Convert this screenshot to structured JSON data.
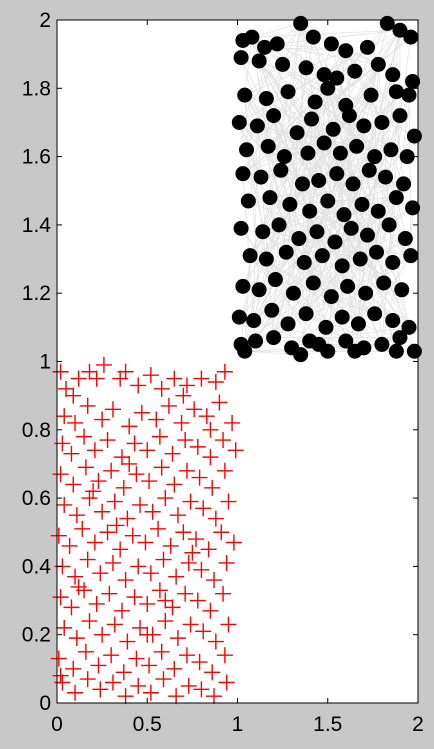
{
  "chart_data": {
    "type": "scatter",
    "title": "",
    "xlabel": "",
    "ylabel": "",
    "xlim": [
      0,
      2
    ],
    "ylim": [
      0,
      2
    ],
    "grid": false,
    "x_ticks": [
      "0",
      "0.5",
      "1",
      "1.5",
      "2"
    ],
    "y_ticks": [
      "0",
      "0.2",
      "0.4",
      "0.6",
      "0.8",
      "1",
      "1.2",
      "1.4",
      "1.6",
      "1.8",
      "2"
    ],
    "series": [
      {
        "marker": "plus",
        "color": "#ff0000",
        "region": {
          "x": [
            0,
            1
          ],
          "y": [
            0,
            1
          ]
        },
        "points": [
          [
            0.02,
            0.97
          ],
          [
            0.05,
            0.92
          ],
          [
            0.09,
            0.9
          ],
          [
            0.12,
            0.95
          ],
          [
            0.18,
            0.97
          ],
          [
            0.22,
            0.95
          ],
          [
            0.26,
            0.99
          ],
          [
            0.35,
            0.95
          ],
          [
            0.38,
            0.97
          ],
          [
            0.45,
            0.93
          ],
          [
            0.52,
            0.96
          ],
          [
            0.58,
            0.92
          ],
          [
            0.65,
            0.95
          ],
          [
            0.72,
            0.93
          ],
          [
            0.8,
            0.95
          ],
          [
            0.88,
            0.94
          ],
          [
            0.93,
            0.97
          ],
          [
            0.04,
            0.84
          ],
          [
            0.1,
            0.82
          ],
          [
            0.17,
            0.87
          ],
          [
            0.25,
            0.83
          ],
          [
            0.31,
            0.86
          ],
          [
            0.4,
            0.81
          ],
          [
            0.47,
            0.85
          ],
          [
            0.55,
            0.83
          ],
          [
            0.62,
            0.87
          ],
          [
            0.69,
            0.82
          ],
          [
            0.76,
            0.86
          ],
          [
            0.83,
            0.84
          ],
          [
            0.9,
            0.88
          ],
          [
            0.97,
            0.82
          ],
          [
            0.03,
            0.76
          ],
          [
            0.08,
            0.73
          ],
          [
            0.15,
            0.78
          ],
          [
            0.21,
            0.74
          ],
          [
            0.28,
            0.77
          ],
          [
            0.36,
            0.72
          ],
          [
            0.43,
            0.76
          ],
          [
            0.5,
            0.74
          ],
          [
            0.57,
            0.78
          ],
          [
            0.64,
            0.73
          ],
          [
            0.71,
            0.77
          ],
          [
            0.78,
            0.75
          ],
          [
            0.85,
            0.72
          ],
          [
            0.92,
            0.77
          ],
          [
            0.99,
            0.74
          ],
          [
            0.02,
            0.67
          ],
          [
            0.09,
            0.64
          ],
          [
            0.16,
            0.69
          ],
          [
            0.23,
            0.65
          ],
          [
            0.3,
            0.68
          ],
          [
            0.37,
            0.63
          ],
          [
            0.44,
            0.67
          ],
          [
            0.51,
            0.65
          ],
          [
            0.58,
            0.69
          ],
          [
            0.65,
            0.64
          ],
          [
            0.72,
            0.68
          ],
          [
            0.79,
            0.66
          ],
          [
            0.86,
            0.63
          ],
          [
            0.93,
            0.68
          ],
          [
            0.04,
            0.58
          ],
          [
            0.11,
            0.55
          ],
          [
            0.18,
            0.6
          ],
          [
            0.25,
            0.56
          ],
          [
            0.32,
            0.59
          ],
          [
            0.39,
            0.54
          ],
          [
            0.46,
            0.58
          ],
          [
            0.53,
            0.56
          ],
          [
            0.6,
            0.6
          ],
          [
            0.67,
            0.55
          ],
          [
            0.74,
            0.59
          ],
          [
            0.81,
            0.57
          ],
          [
            0.88,
            0.54
          ],
          [
            0.95,
            0.59
          ],
          [
            0.01,
            0.49
          ],
          [
            0.07,
            0.46
          ],
          [
            0.14,
            0.51
          ],
          [
            0.21,
            0.47
          ],
          [
            0.28,
            0.5
          ],
          [
            0.35,
            0.45
          ],
          [
            0.42,
            0.49
          ],
          [
            0.49,
            0.47
          ],
          [
            0.56,
            0.51
          ],
          [
            0.63,
            0.46
          ],
          [
            0.7,
            0.5
          ],
          [
            0.77,
            0.48
          ],
          [
            0.84,
            0.45
          ],
          [
            0.91,
            0.5
          ],
          [
            0.98,
            0.47
          ],
          [
            0.03,
            0.4
          ],
          [
            0.1,
            0.37
          ],
          [
            0.17,
            0.42
          ],
          [
            0.24,
            0.38
          ],
          [
            0.31,
            0.41
          ],
          [
            0.38,
            0.36
          ],
          [
            0.45,
            0.4
          ],
          [
            0.52,
            0.38
          ],
          [
            0.59,
            0.42
          ],
          [
            0.66,
            0.37
          ],
          [
            0.73,
            0.41
          ],
          [
            0.8,
            0.39
          ],
          [
            0.87,
            0.36
          ],
          [
            0.94,
            0.41
          ],
          [
            0.02,
            0.31
          ],
          [
            0.08,
            0.28
          ],
          [
            0.15,
            0.33
          ],
          [
            0.22,
            0.29
          ],
          [
            0.29,
            0.32
          ],
          [
            0.36,
            0.27
          ],
          [
            0.43,
            0.31
          ],
          [
            0.5,
            0.29
          ],
          [
            0.57,
            0.33
          ],
          [
            0.64,
            0.28
          ],
          [
            0.71,
            0.32
          ],
          [
            0.78,
            0.3
          ],
          [
            0.85,
            0.27
          ],
          [
            0.92,
            0.32
          ],
          [
            0.04,
            0.22
          ],
          [
            0.11,
            0.19
          ],
          [
            0.18,
            0.24
          ],
          [
            0.25,
            0.2
          ],
          [
            0.32,
            0.23
          ],
          [
            0.39,
            0.18
          ],
          [
            0.46,
            0.22
          ],
          [
            0.53,
            0.2
          ],
          [
            0.6,
            0.24
          ],
          [
            0.67,
            0.19
          ],
          [
            0.74,
            0.23
          ],
          [
            0.81,
            0.21
          ],
          [
            0.88,
            0.18
          ],
          [
            0.95,
            0.23
          ],
          [
            0.01,
            0.13
          ],
          [
            0.09,
            0.1
          ],
          [
            0.16,
            0.15
          ],
          [
            0.23,
            0.11
          ],
          [
            0.3,
            0.14
          ],
          [
            0.37,
            0.09
          ],
          [
            0.44,
            0.13
          ],
          [
            0.51,
            0.11
          ],
          [
            0.58,
            0.15
          ],
          [
            0.65,
            0.1
          ],
          [
            0.72,
            0.14
          ],
          [
            0.79,
            0.12
          ],
          [
            0.86,
            0.09
          ],
          [
            0.93,
            0.14
          ],
          [
            0.03,
            0.06
          ],
          [
            0.1,
            0.03
          ],
          [
            0.17,
            0.07
          ],
          [
            0.24,
            0.04
          ],
          [
            0.31,
            0.06
          ],
          [
            0.38,
            0.02
          ],
          [
            0.45,
            0.05
          ],
          [
            0.52,
            0.03
          ],
          [
            0.59,
            0.07
          ],
          [
            0.66,
            0.02
          ],
          [
            0.73,
            0.05
          ],
          [
            0.8,
            0.04
          ],
          [
            0.87,
            0.02
          ],
          [
            0.94,
            0.06
          ],
          [
            0.02,
            0.08
          ],
          [
            0.2,
            0.62
          ],
          [
            0.4,
            0.7
          ],
          [
            0.6,
            0.3
          ],
          [
            0.7,
            0.9
          ],
          [
            0.5,
            0.2
          ],
          [
            0.33,
            0.52
          ],
          [
            0.75,
            0.44
          ],
          [
            0.12,
            0.34
          ],
          [
            0.85,
            0.8
          ]
        ]
      },
      {
        "marker": "circle-filled",
        "color": "#000000",
        "region": {
          "x": [
            1,
            2
          ],
          "y": [
            1,
            2
          ]
        },
        "connecting_lines_color": "#e0e0e0",
        "points": [
          [
            1.03,
            1.94
          ],
          [
            1.08,
            1.95
          ],
          [
            1.15,
            1.92
          ],
          [
            1.22,
            1.93
          ],
          [
            1.35,
            1.99
          ],
          [
            1.42,
            1.95
          ],
          [
            1.52,
            1.93
          ],
          [
            1.6,
            1.91
          ],
          [
            1.72,
            1.92
          ],
          [
            1.83,
            1.99
          ],
          [
            1.9,
            1.97
          ],
          [
            1.96,
            1.95
          ],
          [
            1.02,
            1.89
          ],
          [
            1.12,
            1.88
          ],
          [
            1.25,
            1.87
          ],
          [
            1.38,
            1.86
          ],
          [
            1.48,
            1.84
          ],
          [
            1.55,
            1.83
          ],
          [
            1.65,
            1.85
          ],
          [
            1.78,
            1.87
          ],
          [
            1.86,
            1.84
          ],
          [
            1.97,
            1.82
          ],
          [
            1.04,
            1.78
          ],
          [
            1.16,
            1.77
          ],
          [
            1.28,
            1.79
          ],
          [
            1.43,
            1.76
          ],
          [
            1.5,
            1.8
          ],
          [
            1.6,
            1.75
          ],
          [
            1.74,
            1.78
          ],
          [
            1.88,
            1.79
          ],
          [
            1.95,
            1.78
          ],
          [
            1.01,
            1.7
          ],
          [
            1.11,
            1.69
          ],
          [
            1.2,
            1.72
          ],
          [
            1.33,
            1.67
          ],
          [
            1.41,
            1.71
          ],
          [
            1.53,
            1.68
          ],
          [
            1.62,
            1.72
          ],
          [
            1.7,
            1.69
          ],
          [
            1.8,
            1.7
          ],
          [
            1.9,
            1.72
          ],
          [
            1.98,
            1.66
          ],
          [
            1.05,
            1.62
          ],
          [
            1.17,
            1.63
          ],
          [
            1.26,
            1.6
          ],
          [
            1.39,
            1.61
          ],
          [
            1.48,
            1.64
          ],
          [
            1.57,
            1.61
          ],
          [
            1.66,
            1.63
          ],
          [
            1.76,
            1.6
          ],
          [
            1.85,
            1.62
          ],
          [
            1.94,
            1.6
          ],
          [
            1.03,
            1.55
          ],
          [
            1.13,
            1.54
          ],
          [
            1.24,
            1.56
          ],
          [
            1.36,
            1.52
          ],
          [
            1.45,
            1.53
          ],
          [
            1.55,
            1.55
          ],
          [
            1.64,
            1.52
          ],
          [
            1.73,
            1.56
          ],
          [
            1.82,
            1.54
          ],
          [
            1.92,
            1.52
          ],
          [
            1.06,
            1.47
          ],
          [
            1.18,
            1.48
          ],
          [
            1.29,
            1.46
          ],
          [
            1.4,
            1.44
          ],
          [
            1.5,
            1.47
          ],
          [
            1.59,
            1.43
          ],
          [
            1.69,
            1.46
          ],
          [
            1.78,
            1.44
          ],
          [
            1.88,
            1.48
          ],
          [
            1.97,
            1.45
          ],
          [
            1.02,
            1.39
          ],
          [
            1.14,
            1.38
          ],
          [
            1.23,
            1.4
          ],
          [
            1.34,
            1.36
          ],
          [
            1.44,
            1.38
          ],
          [
            1.54,
            1.35
          ],
          [
            1.63,
            1.39
          ],
          [
            1.72,
            1.37
          ],
          [
            1.84,
            1.4
          ],
          [
            1.93,
            1.36
          ],
          [
            1.07,
            1.31
          ],
          [
            1.16,
            1.3
          ],
          [
            1.27,
            1.32
          ],
          [
            1.37,
            1.29
          ],
          [
            1.47,
            1.31
          ],
          [
            1.58,
            1.28
          ],
          [
            1.68,
            1.3
          ],
          [
            1.77,
            1.32
          ],
          [
            1.86,
            1.29
          ],
          [
            1.96,
            1.31
          ],
          [
            1.03,
            1.22
          ],
          [
            1.12,
            1.21
          ],
          [
            1.21,
            1.24
          ],
          [
            1.31,
            1.2
          ],
          [
            1.42,
            1.23
          ],
          [
            1.52,
            1.19
          ],
          [
            1.61,
            1.22
          ],
          [
            1.71,
            1.2
          ],
          [
            1.81,
            1.23
          ],
          [
            1.91,
            1.21
          ],
          [
            1.01,
            1.13
          ],
          [
            1.09,
            1.12
          ],
          [
            1.19,
            1.15
          ],
          [
            1.28,
            1.11
          ],
          [
            1.38,
            1.14
          ],
          [
            1.49,
            1.1
          ],
          [
            1.58,
            1.13
          ],
          [
            1.67,
            1.11
          ],
          [
            1.76,
            1.14
          ],
          [
            1.86,
            1.12
          ],
          [
            1.95,
            1.1
          ],
          [
            1.02,
            1.05
          ],
          [
            1.1,
            1.06
          ],
          [
            1.2,
            1.07
          ],
          [
            1.3,
            1.04
          ],
          [
            1.4,
            1.06
          ],
          [
            1.5,
            1.03
          ],
          [
            1.6,
            1.06
          ],
          [
            1.7,
            1.04
          ],
          [
            1.8,
            1.05
          ],
          [
            1.9,
            1.07
          ],
          [
            1.98,
            1.03
          ],
          [
            1.04,
            1.03
          ],
          [
            1.35,
            1.02
          ],
          [
            1.45,
            1.05
          ],
          [
            1.65,
            1.03
          ],
          [
            1.88,
            1.03
          ]
        ]
      }
    ]
  }
}
